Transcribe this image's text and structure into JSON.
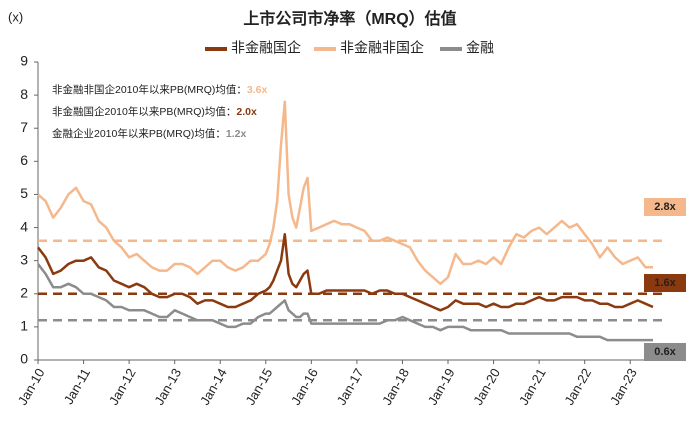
{
  "chart_data": {
    "type": "line",
    "title": "上市公司市净率（MRQ）估值",
    "y_label": "(x)",
    "ylim": [
      0,
      9
    ],
    "yticks": [
      0,
      1,
      2,
      3,
      4,
      5,
      6,
      7,
      8,
      9
    ],
    "xlim": [
      "2010-01",
      "2023-12"
    ],
    "xticks": [
      {
        "value": "2010-01",
        "label": "Jan-10"
      },
      {
        "value": "2011-01",
        "label": "Jan-11"
      },
      {
        "value": "2012-01",
        "label": "Jan-12"
      },
      {
        "value": "2013-01",
        "label": "Jan-13"
      },
      {
        "value": "2014-01",
        "label": "Jan-14"
      },
      {
        "value": "2015-01",
        "label": "Jan-15"
      },
      {
        "value": "2016-01",
        "label": "Jan-16"
      },
      {
        "value": "2017-01",
        "label": "Jan-17"
      },
      {
        "value": "2018-01",
        "label": "Jan-18"
      },
      {
        "value": "2019-01",
        "label": "Jan-19"
      },
      {
        "value": "2020-01",
        "label": "Jan-20"
      },
      {
        "value": "2021-01",
        "label": "Jan-21"
      },
      {
        "value": "2022-01",
        "label": "Jan-22"
      },
      {
        "value": "2023-01",
        "label": "Jan-23"
      }
    ],
    "x": [
      "2010-01",
      "2010-03",
      "2010-05",
      "2010-07",
      "2010-09",
      "2010-11",
      "2011-01",
      "2011-03",
      "2011-05",
      "2011-07",
      "2011-09",
      "2011-11",
      "2012-01",
      "2012-03",
      "2012-05",
      "2012-07",
      "2012-09",
      "2012-11",
      "2013-01",
      "2013-03",
      "2013-05",
      "2013-07",
      "2013-09",
      "2013-11",
      "2014-01",
      "2014-03",
      "2014-05",
      "2014-07",
      "2014-09",
      "2014-11",
      "2015-01",
      "2015-02",
      "2015-03",
      "2015-04",
      "2015-05",
      "2015-06",
      "2015-07",
      "2015-08",
      "2015-09",
      "2015-10",
      "2015-11",
      "2015-12",
      "2016-01",
      "2016-03",
      "2016-05",
      "2016-07",
      "2016-09",
      "2016-11",
      "2017-01",
      "2017-03",
      "2017-05",
      "2017-07",
      "2017-09",
      "2017-11",
      "2018-01",
      "2018-03",
      "2018-05",
      "2018-07",
      "2018-09",
      "2018-11",
      "2019-01",
      "2019-03",
      "2019-05",
      "2019-07",
      "2019-09",
      "2019-11",
      "2020-01",
      "2020-03",
      "2020-05",
      "2020-07",
      "2020-09",
      "2020-11",
      "2021-01",
      "2021-03",
      "2021-05",
      "2021-07",
      "2021-09",
      "2021-11",
      "2022-01",
      "2022-03",
      "2022-05",
      "2022-07",
      "2022-09",
      "2022-11",
      "2023-01",
      "2023-03",
      "2023-05",
      "2023-07"
    ],
    "series": [
      {
        "name": "非金融国企",
        "color": "#8B3A0F",
        "end_label": "1.6x",
        "values": [
          3.4,
          3.1,
          2.6,
          2.7,
          2.9,
          3.0,
          3.0,
          3.1,
          2.8,
          2.7,
          2.4,
          2.3,
          2.2,
          2.3,
          2.2,
          2.0,
          1.9,
          1.9,
          2.0,
          2.0,
          1.9,
          1.7,
          1.8,
          1.8,
          1.7,
          1.6,
          1.6,
          1.7,
          1.8,
          2.0,
          2.1,
          2.2,
          2.4,
          2.7,
          3.0,
          3.8,
          2.6,
          2.3,
          2.2,
          2.4,
          2.6,
          2.7,
          2.0,
          2.0,
          2.1,
          2.1,
          2.1,
          2.1,
          2.1,
          2.1,
          2.0,
          2.1,
          2.1,
          2.0,
          2.0,
          1.9,
          1.8,
          1.7,
          1.6,
          1.5,
          1.6,
          1.8,
          1.7,
          1.7,
          1.7,
          1.6,
          1.7,
          1.6,
          1.6,
          1.7,
          1.7,
          1.8,
          1.9,
          1.8,
          1.8,
          1.9,
          1.9,
          1.9,
          1.8,
          1.8,
          1.7,
          1.7,
          1.6,
          1.6,
          1.7,
          1.8,
          1.7,
          1.6
        ]
      },
      {
        "name": "非金融非国企",
        "color": "#F5B88C",
        "end_label": "2.8x",
        "values": [
          5.0,
          4.8,
          4.3,
          4.6,
          5.0,
          5.2,
          4.8,
          4.7,
          4.2,
          4.0,
          3.6,
          3.4,
          3.1,
          3.2,
          3.0,
          2.8,
          2.7,
          2.7,
          2.9,
          2.9,
          2.8,
          2.6,
          2.8,
          3.0,
          3.0,
          2.8,
          2.7,
          2.8,
          3.0,
          3.0,
          3.2,
          3.5,
          4.0,
          4.8,
          6.5,
          7.8,
          5.0,
          4.3,
          4.0,
          4.6,
          5.2,
          5.5,
          3.9,
          4.0,
          4.1,
          4.2,
          4.1,
          4.1,
          4.0,
          3.9,
          3.6,
          3.6,
          3.7,
          3.6,
          3.5,
          3.4,
          3.0,
          2.7,
          2.5,
          2.3,
          2.5,
          3.2,
          2.9,
          2.9,
          3.0,
          2.9,
          3.1,
          2.9,
          3.4,
          3.8,
          3.7,
          3.9,
          4.0,
          3.8,
          4.0,
          4.2,
          4.0,
          4.1,
          3.8,
          3.5,
          3.1,
          3.4,
          3.1,
          2.9,
          3.0,
          3.1,
          2.8,
          2.8
        ]
      },
      {
        "name": "金融",
        "color": "#8C8C8C",
        "end_label": "0.6x",
        "values": [
          2.9,
          2.6,
          2.2,
          2.2,
          2.3,
          2.2,
          2.0,
          2.0,
          1.9,
          1.8,
          1.6,
          1.6,
          1.5,
          1.5,
          1.5,
          1.4,
          1.3,
          1.3,
          1.5,
          1.4,
          1.3,
          1.2,
          1.2,
          1.2,
          1.1,
          1.0,
          1.0,
          1.1,
          1.1,
          1.3,
          1.4,
          1.4,
          1.5,
          1.6,
          1.7,
          1.8,
          1.5,
          1.4,
          1.3,
          1.3,
          1.4,
          1.4,
          1.1,
          1.1,
          1.1,
          1.1,
          1.1,
          1.1,
          1.1,
          1.1,
          1.1,
          1.1,
          1.2,
          1.2,
          1.3,
          1.2,
          1.1,
          1.0,
          1.0,
          0.9,
          1.0,
          1.0,
          1.0,
          0.9,
          0.9,
          0.9,
          0.9,
          0.9,
          0.8,
          0.8,
          0.8,
          0.8,
          0.8,
          0.8,
          0.8,
          0.8,
          0.8,
          0.7,
          0.7,
          0.7,
          0.7,
          0.6,
          0.6,
          0.6,
          0.6,
          0.6,
          0.6,
          0.6
        ]
      }
    ],
    "reference_lines": [
      {
        "text": "非金融非国企2010年以来PB(MRQ)均值：",
        "value": 3.6,
        "label": "3.6x",
        "color": "#F5B88C"
      },
      {
        "text": "非金融国企2010年以来PB(MRQ)均值：",
        "value": 2.0,
        "label": "2.0x",
        "color": "#8B3A0F"
      },
      {
        "text": "金融企业2010年以来PB(MRQ)均值：",
        "value": 1.2,
        "label": "1.2x",
        "color": "#8C8C8C"
      }
    ]
  }
}
